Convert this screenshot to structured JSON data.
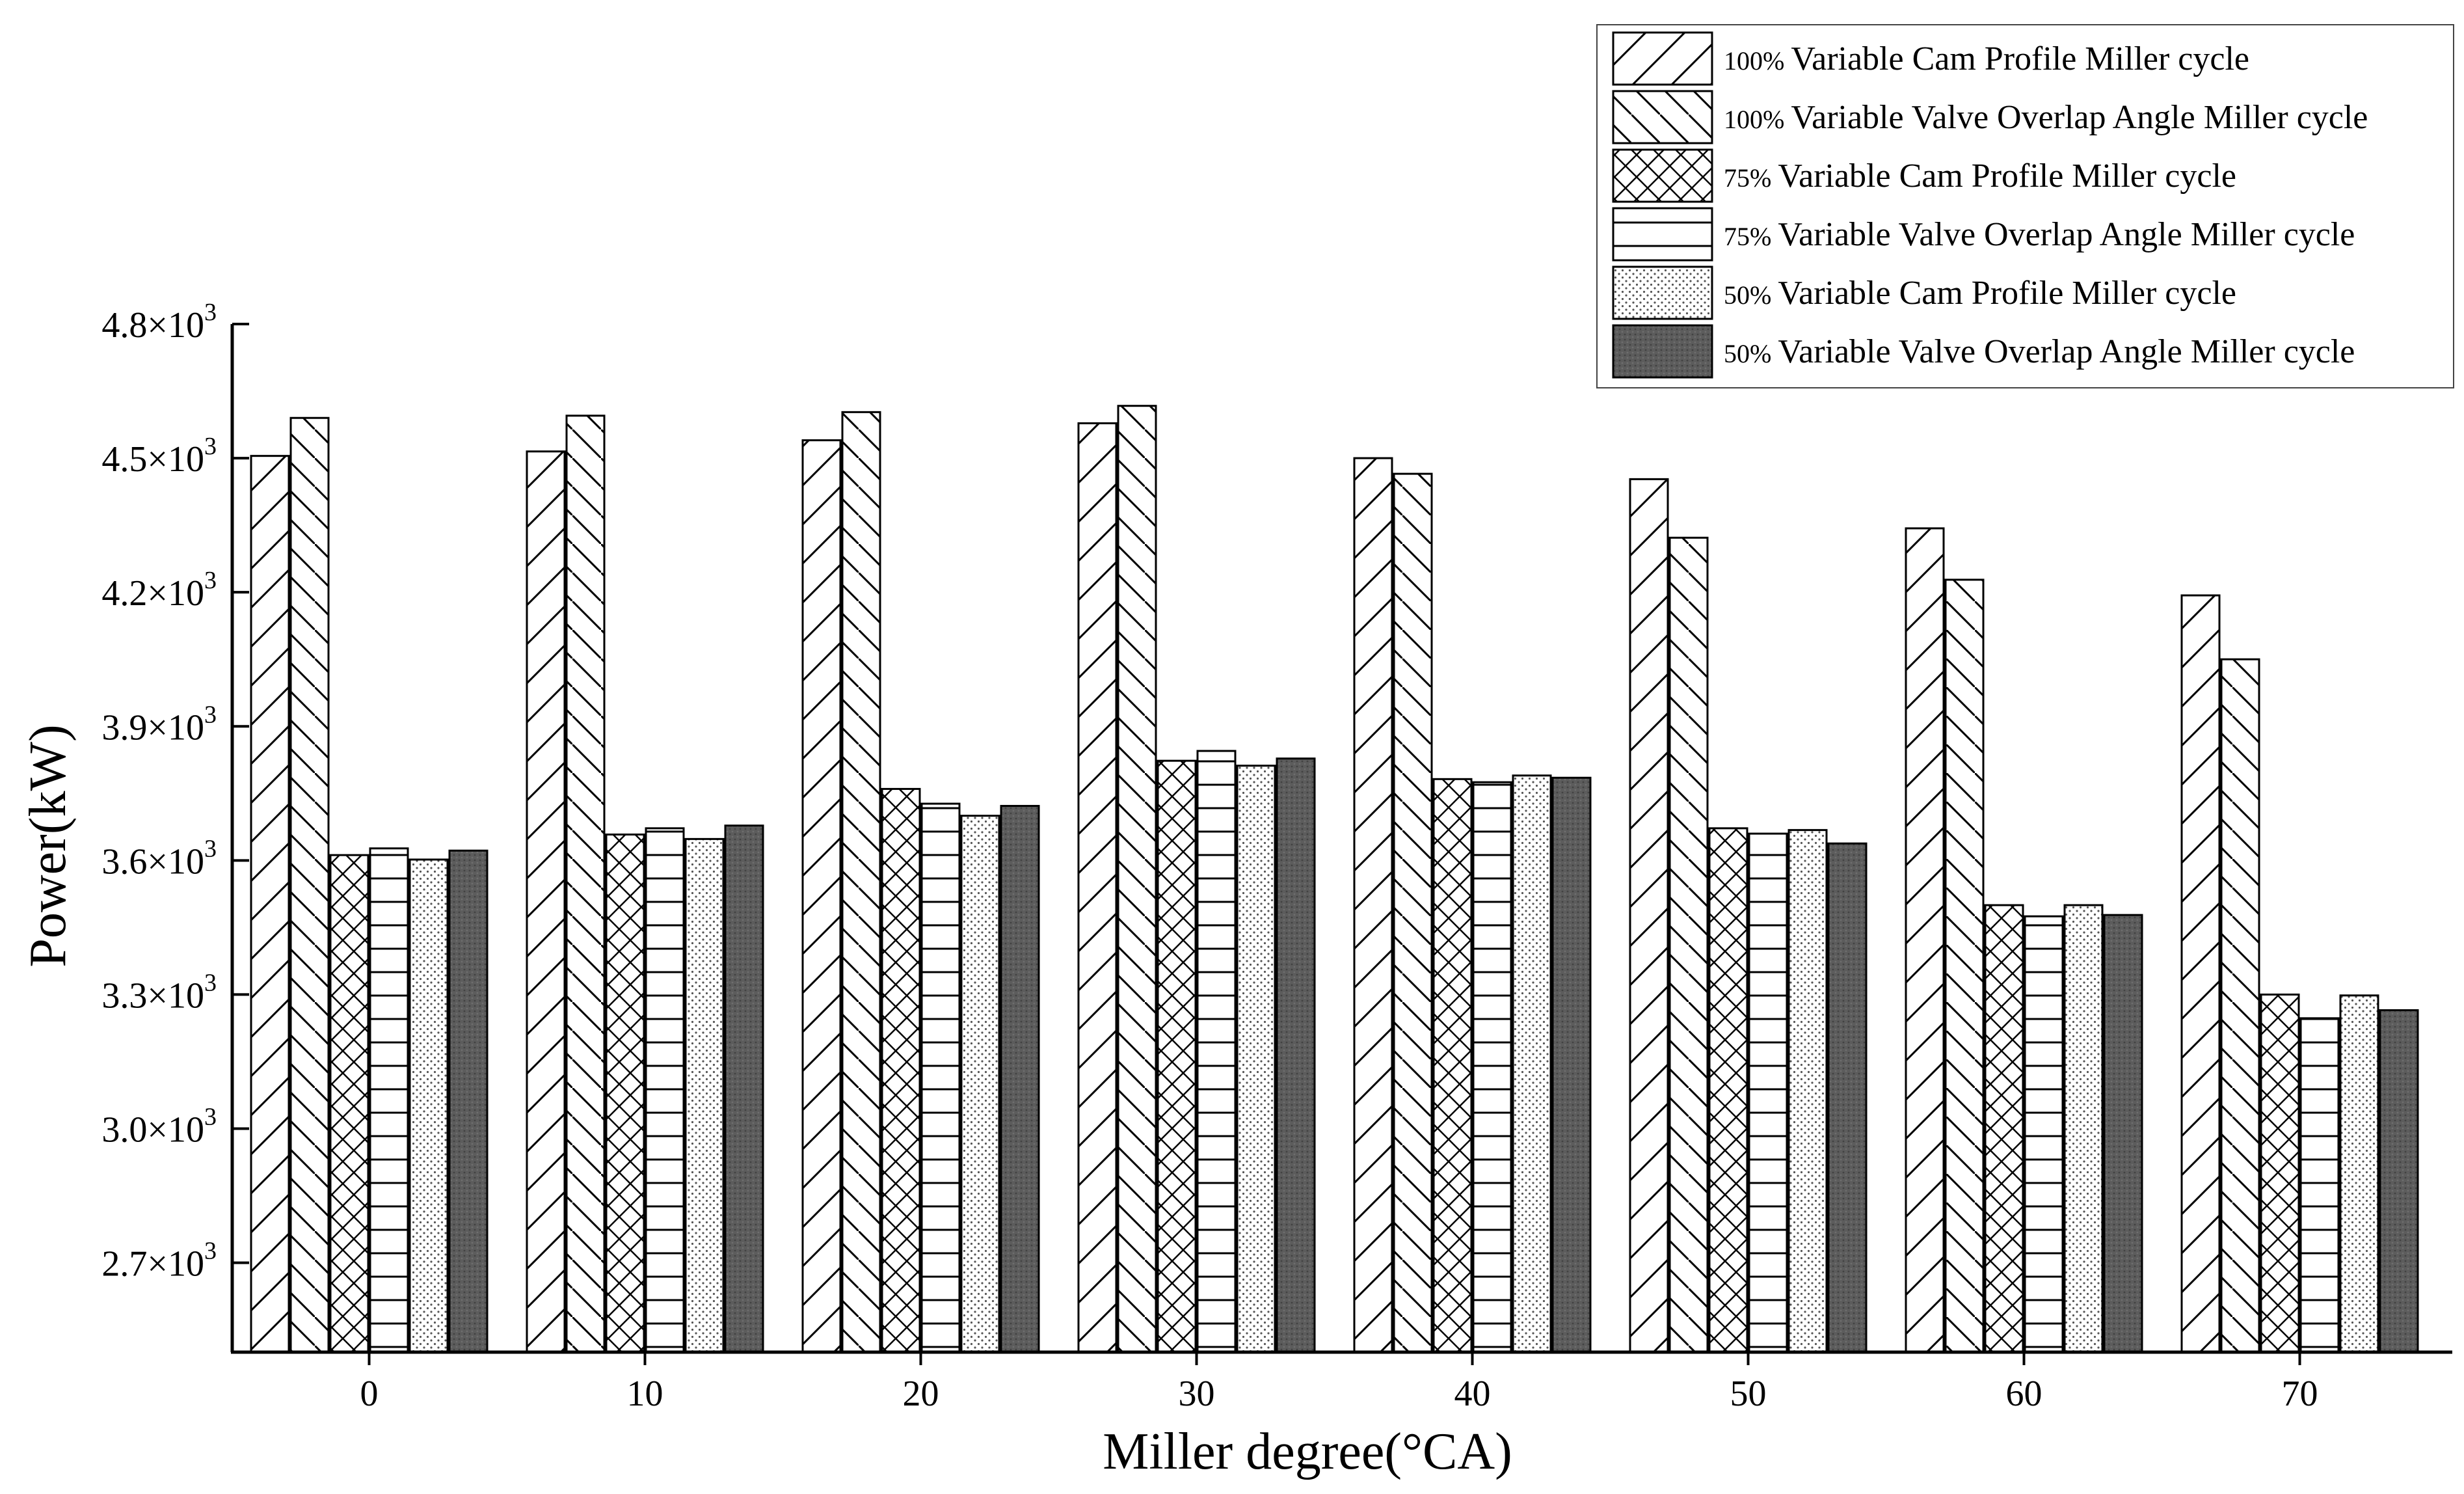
{
  "chart_data": {
    "type": "bar",
    "title": "",
    "xlabel": "Miller degree(°CA)",
    "ylabel": "Power(kW)",
    "categories": [
      "0",
      "10",
      "20",
      "30",
      "40",
      "50",
      "60",
      "70"
    ],
    "ylim": [
      2500,
      4800
    ],
    "yticks": [
      {
        "value": 2700,
        "base": "2.7×10",
        "exp": "3"
      },
      {
        "value": 3000,
        "base": "3.0×10",
        "exp": "3"
      },
      {
        "value": 3300,
        "base": "3.3×10",
        "exp": "3"
      },
      {
        "value": 3600,
        "base": "3.6×10",
        "exp": "3"
      },
      {
        "value": 3900,
        "base": "3.9×10",
        "exp": "3"
      },
      {
        "value": 4200,
        "base": "4.2×10",
        "exp": "3"
      },
      {
        "value": 4500,
        "base": "4.5×10",
        "exp": "3"
      },
      {
        "value": 4800,
        "base": "4.8×10",
        "exp": "3"
      }
    ],
    "grid": false,
    "legend_position": "top-right",
    "series": [
      {
        "name": "100% Variable Cam Profile Miller cycle",
        "prefix": "100%",
        "label": "Variable Cam Profile Miller cycle",
        "pattern": "forward-diagonal",
        "values": [
          4505,
          4515,
          4540,
          4578,
          4500,
          4453,
          4343,
          4193
        ]
      },
      {
        "name": "100% Variable Valve Overlap Angle Miller cycle",
        "prefix": "100%",
        "label": "Variable Valve Overlap Angle Miller cycle",
        "pattern": "back-diagonal",
        "values": [
          4590,
          4595,
          4603,
          4617,
          4465,
          4322,
          4228,
          4050
        ]
      },
      {
        "name": "75% Variable Cam Profile Miller cycle",
        "prefix": "75%",
        "label": "Variable Cam Profile Miller cycle",
        "pattern": "crosshatch",
        "values": [
          3612,
          3658,
          3760,
          3823,
          3782,
          3672,
          3500,
          3300
        ]
      },
      {
        "name": "75% Variable Valve Overlap Angle Miller cycle",
        "prefix": "75%",
        "label": "Variable Valve Overlap Angle Miller cycle",
        "pattern": "horizontal",
        "values": [
          3627,
          3672,
          3727,
          3845,
          3775,
          3660,
          3475,
          3247
        ]
      },
      {
        "name": "50% Variable Cam Profile Miller cycle",
        "prefix": "50%",
        "label": "Variable Cam Profile Miller cycle",
        "pattern": "dots",
        "values": [
          3602,
          3648,
          3700,
          3812,
          3790,
          3668,
          3500,
          3298
        ]
      },
      {
        "name": "50% Variable Valve Overlap Angle Miller cycle",
        "prefix": "50%",
        "label": "Variable Valve Overlap Angle Miller cycle",
        "pattern": "dark-solid",
        "values": [
          3622,
          3678,
          3722,
          3828,
          3785,
          3638,
          3478,
          3265
        ]
      }
    ]
  }
}
